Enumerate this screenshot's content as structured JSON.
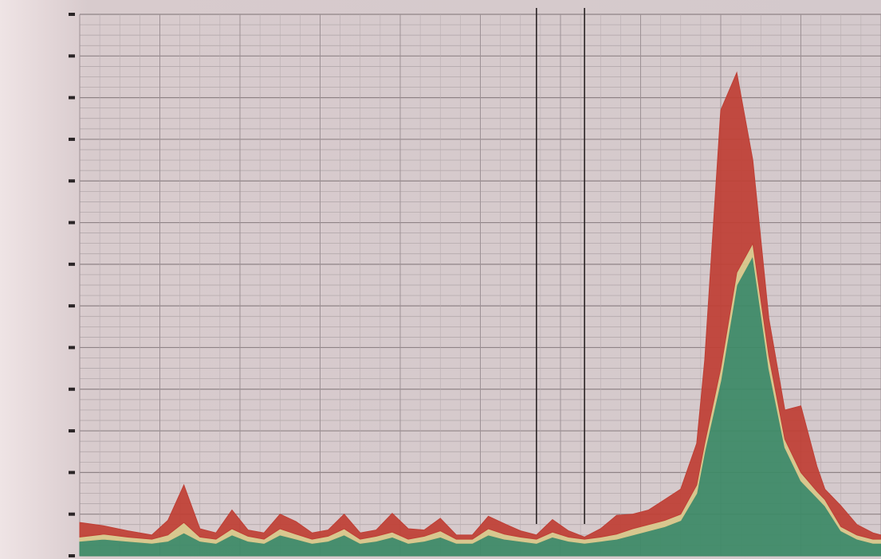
{
  "chart_data": {
    "type": "area",
    "title": "",
    "xlabel": "",
    "ylabel": "",
    "stacked": true,
    "grid": true,
    "ylim": [
      0,
      13
    ],
    "y_ticks": [
      0,
      1,
      2,
      3,
      4,
      5,
      6,
      7,
      8,
      9,
      10,
      11,
      12,
      13
    ],
    "y_tick_labels": [
      "",
      "",
      "",
      "",
      "",
      "",
      "",
      "",
      "",
      "",
      "",
      "",
      "",
      ""
    ],
    "xlim": [
      0,
      100
    ],
    "x": [
      0,
      3,
      6,
      9,
      11,
      13,
      15,
      17,
      19,
      21,
      23,
      25,
      27,
      29,
      31,
      33,
      35,
      37,
      39,
      41,
      43,
      45,
      47,
      49,
      51,
      53,
      55,
      57,
      59,
      61,
      63,
      65,
      67,
      69,
      71,
      73,
      75,
      77,
      78,
      80,
      82,
      84,
      86,
      88,
      90,
      92,
      93,
      95,
      97,
      99,
      100
    ],
    "series": [
      {
        "color": "#3c8a66",
        "values": [
          0.35,
          0.4,
          0.35,
          0.3,
          0.35,
          0.55,
          0.35,
          0.3,
          0.5,
          0.35,
          0.3,
          0.5,
          0.4,
          0.3,
          0.35,
          0.5,
          0.3,
          0.35,
          0.45,
          0.3,
          0.35,
          0.45,
          0.3,
          0.3,
          0.5,
          0.4,
          0.35,
          0.3,
          0.45,
          0.35,
          0.3,
          0.35,
          0.4,
          0.5,
          0.6,
          0.7,
          0.85,
          1.5,
          2.5,
          4.2,
          6.5,
          7.2,
          4.5,
          2.6,
          1.8,
          1.4,
          1.2,
          0.6,
          0.4,
          0.3,
          0.3
        ]
      },
      {
        "color": "#d8c78a",
        "values": [
          0.1,
          0.12,
          0.1,
          0.1,
          0.15,
          0.25,
          0.1,
          0.1,
          0.15,
          0.12,
          0.1,
          0.15,
          0.12,
          0.1,
          0.12,
          0.15,
          0.1,
          0.12,
          0.12,
          0.1,
          0.12,
          0.15,
          0.1,
          0.1,
          0.15,
          0.12,
          0.1,
          0.1,
          0.12,
          0.1,
          0.1,
          0.1,
          0.12,
          0.15,
          0.15,
          0.15,
          0.15,
          0.2,
          0.2,
          0.3,
          0.3,
          0.3,
          0.3,
          0.2,
          0.2,
          0.15,
          0.15,
          0.1,
          0.1,
          0.1,
          0.1
        ]
      },
      {
        "color": "#bf3f35",
        "values": [
          0.35,
          0.2,
          0.15,
          0.1,
          0.35,
          0.9,
          0.2,
          0.15,
          0.45,
          0.15,
          0.15,
          0.35,
          0.3,
          0.15,
          0.15,
          0.35,
          0.15,
          0.15,
          0.45,
          0.25,
          0.15,
          0.3,
          0.1,
          0.1,
          0.3,
          0.25,
          0.15,
          0.1,
          0.3,
          0.15,
          0.05,
          0.2,
          0.45,
          0.35,
          0.35,
          0.5,
          0.6,
          1.0,
          2.0,
          6.2,
          4.8,
          2.0,
          0.9,
          0.7,
          1.6,
          0.6,
          0.25,
          0.5,
          0.25,
          0.15,
          0.1
        ]
      }
    ],
    "annotations": [
      {
        "text": "",
        "x": 57,
        "orientation": "vertical-line"
      },
      {
        "text": "",
        "x": 63,
        "orientation": "vertical-line"
      }
    ],
    "legend": [
      {
        "text": ""
      },
      {
        "text": ""
      },
      {
        "text": ""
      }
    ]
  }
}
